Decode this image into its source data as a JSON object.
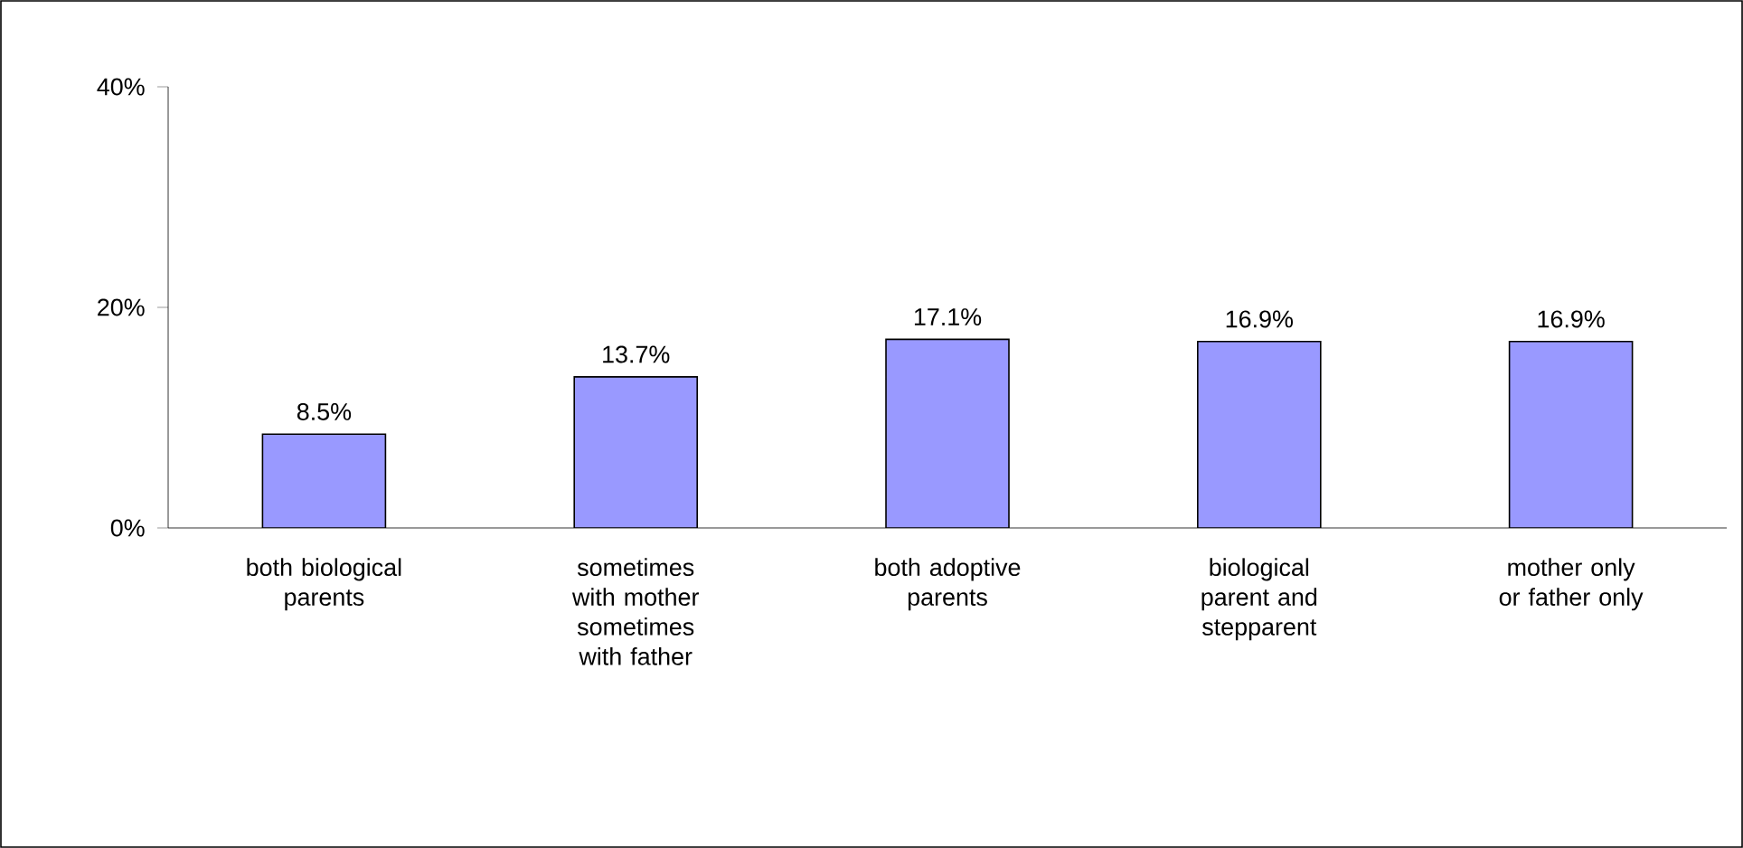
{
  "chart_data": {
    "type": "bar",
    "categories": [
      "both biological parents",
      "sometimes with mother sometimes with father",
      "both adoptive parents",
      "biological parent and stepparent",
      "mother only or father only"
    ],
    "values": [
      8.5,
      13.7,
      17.1,
      16.9,
      16.9
    ],
    "value_labels": [
      "8.5%",
      "13.7%",
      "17.1%",
      "16.9%",
      "16.9%"
    ],
    "color": "#9999ff",
    "ylim": [
      0,
      40
    ],
    "yticks": [
      {
        "value": 0,
        "label": "0%"
      },
      {
        "value": 20,
        "label": "20%"
      },
      {
        "value": 40,
        "label": "40%"
      }
    ],
    "grid": false
  }
}
